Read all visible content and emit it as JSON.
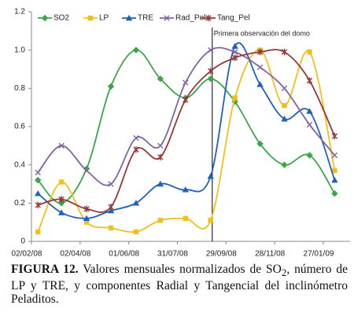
{
  "chart_data": {
    "type": "line",
    "x": [
      "2008-02-10",
      "2008-03-10",
      "2008-04-10",
      "2008-05-10",
      "2008-06-10",
      "2008-07-10",
      "2008-08-10",
      "2008-09-10",
      "2008-10-10",
      "2008-11-10",
      "2008-12-10",
      "2009-01-10",
      "2009-02-10"
    ],
    "series": [
      {
        "name": "SO2",
        "color": "#3aa64a",
        "marker": "diamond",
        "values": [
          0.32,
          0.2,
          0.38,
          0.81,
          1.0,
          0.85,
          0.75,
          0.85,
          0.73,
          0.51,
          0.4,
          0.45,
          0.25
        ]
      },
      {
        "name": "LP",
        "color": "#f2c01c",
        "marker": "square",
        "values": [
          0.05,
          0.31,
          0.1,
          0.07,
          0.05,
          0.11,
          0.12,
          0.11,
          0.75,
          1.0,
          0.71,
          0.99,
          0.37
        ]
      },
      {
        "name": "TRE",
        "color": "#1f5fbf",
        "marker": "triangle",
        "values": [
          0.25,
          0.15,
          0.12,
          0.16,
          0.2,
          0.3,
          0.27,
          0.34,
          1.02,
          0.82,
          0.64,
          0.68,
          0.32
        ]
      },
      {
        "name": "Rad_Pel",
        "color": "#8064a2",
        "marker": "cross",
        "values": [
          0.36,
          0.5,
          0.37,
          0.3,
          0.54,
          0.5,
          0.83,
          1.0,
          0.99,
          0.91,
          0.8,
          0.61,
          0.45
        ]
      },
      {
        "name": "Tang_Pel",
        "color": "#953735",
        "marker": "star",
        "values": [
          0.19,
          0.22,
          0.17,
          0.18,
          0.48,
          0.44,
          0.74,
          0.89,
          0.96,
          0.99,
          0.99,
          0.84,
          0.55
        ]
      }
    ],
    "xlim": [
      "2008-02-02",
      "2009-03-01"
    ],
    "xticks": [
      {
        "value": "2008-02-02",
        "label": "02/02/08"
      },
      {
        "value": "2008-04-02",
        "label": "02/04/08"
      },
      {
        "value": "2008-06-01",
        "label": "01/06/08"
      },
      {
        "value": "2008-07-31",
        "label": "31/07/08"
      },
      {
        "value": "2008-09-29",
        "label": "29/09/08"
      },
      {
        "value": "2008-11-28",
        "label": "28/11/08"
      },
      {
        "value": "2009-01-27",
        "label": "27/01/09"
      }
    ],
    "ylim": [
      0,
      1.2
    ],
    "yticks": [
      0,
      0.2,
      0.4,
      0.6,
      0.8,
      {
        "value": 1.0,
        "label": "1.0"
      },
      1.2
    ],
    "grid": false,
    "legend": "top",
    "annotation": {
      "text": "Primera observación del domo",
      "x": "2008-09-12"
    }
  },
  "caption": {
    "label": "FIGURA 12.",
    "text_before": " Valores mensuales normalizados de SO",
    "subscript": "2",
    "text_after": ", número de LP y TRE, y componentes Radial y Tangencial del inclinómetro Peladitos."
  }
}
